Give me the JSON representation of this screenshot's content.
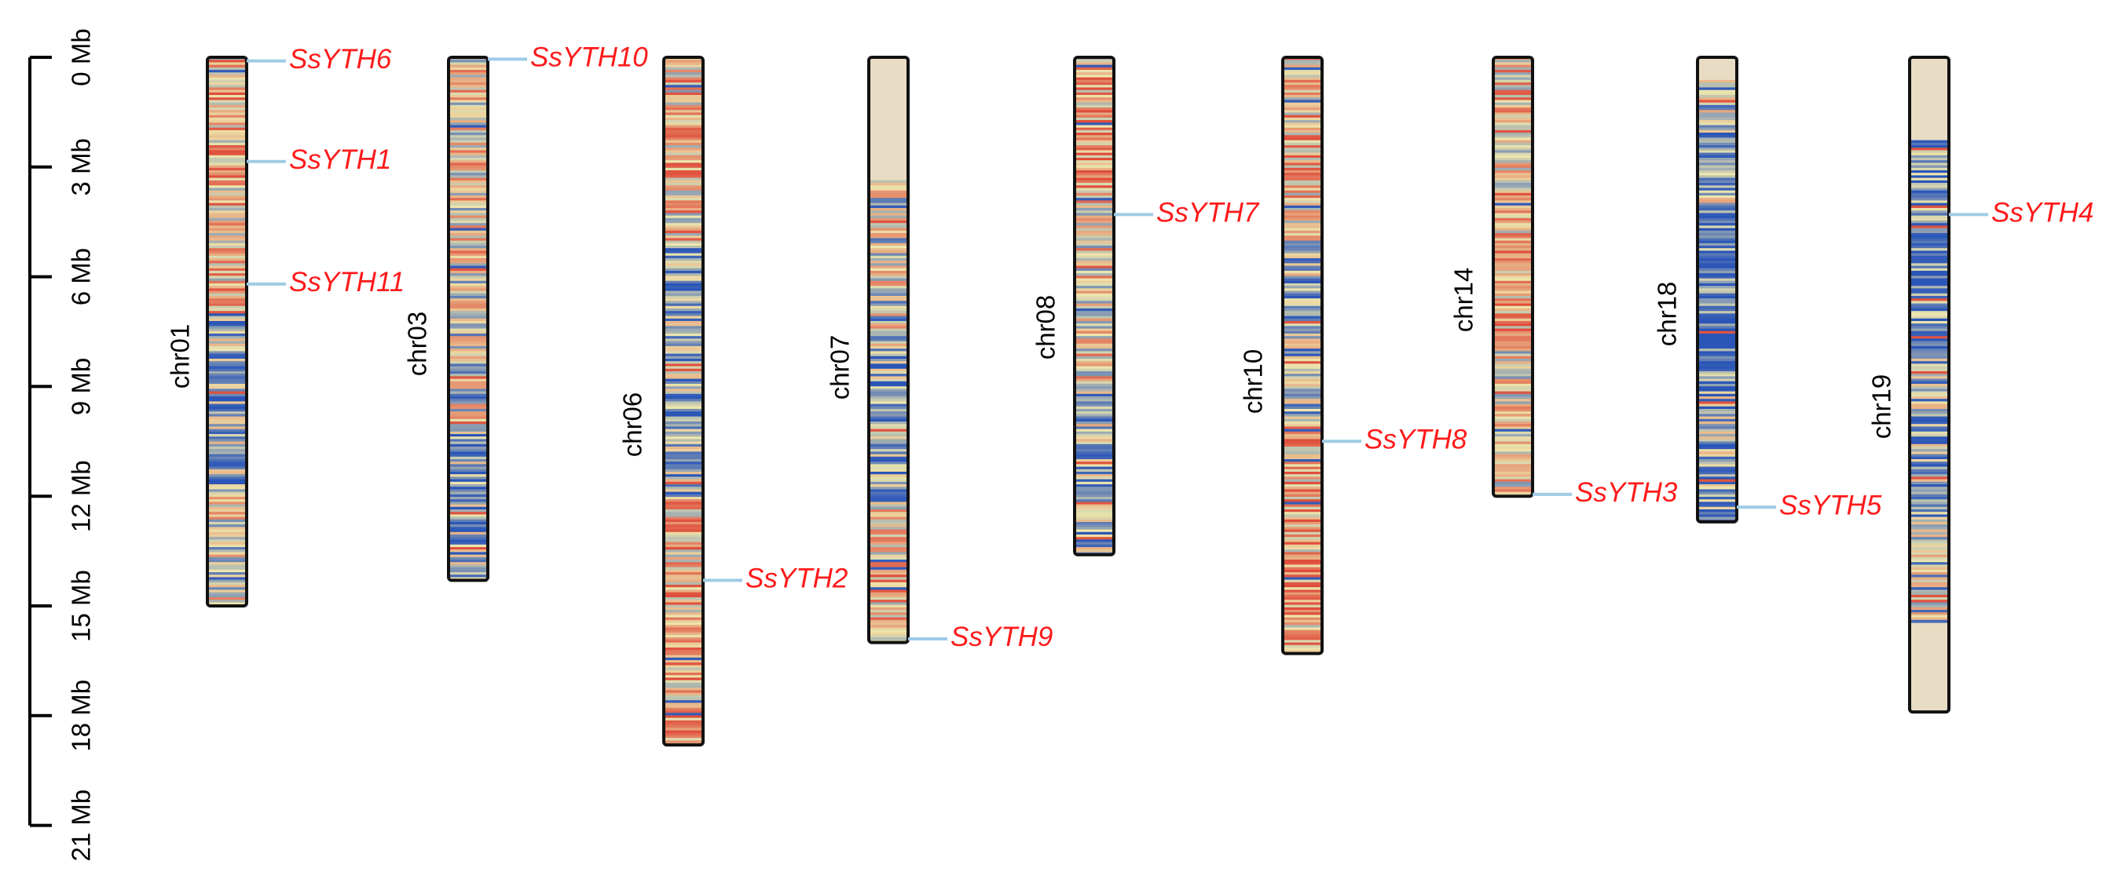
{
  "colors": {
    "chromosome_outline": "#111111",
    "no_density": "#e8dcc4",
    "density_low": "#2b56b8",
    "density_mid": "#ede6ad",
    "density_high": "#df4e3c",
    "gene_connector": "#9fcbe6",
    "gene_label": "#ff1a1a",
    "text": "#000000"
  },
  "scale_bar": {
    "unit": "Mb",
    "ticks": [
      {
        "value": 0,
        "label": "0 Mb"
      },
      {
        "value": 3,
        "label": "3 Mb"
      },
      {
        "value": 6,
        "label": "6 Mb"
      },
      {
        "value": 9,
        "label": "9 Mb"
      },
      {
        "value": 12,
        "label": "12 Mb"
      },
      {
        "value": 15,
        "label": "15 Mb"
      },
      {
        "value": 18,
        "label": "18 Mb"
      },
      {
        "value": 21,
        "label": "21 Mb"
      }
    ]
  },
  "chromosomes": [
    {
      "name": "chr01",
      "length_mb": 15.0,
      "genes": [
        {
          "name": "SsYTH6",
          "position_mb": 0.1
        },
        {
          "name": "SsYTH1",
          "position_mb": 2.85
        },
        {
          "name": "SsYTH11",
          "position_mb": 6.2
        }
      ]
    },
    {
      "name": "chr03",
      "length_mb": 14.3,
      "genes": [
        {
          "name": "SsYTH10",
          "position_mb": 0.05
        }
      ]
    },
    {
      "name": "chr06",
      "length_mb": 18.8,
      "genes": [
        {
          "name": "SsYTH2",
          "position_mb": 14.3
        }
      ]
    },
    {
      "name": "chr07",
      "length_mb": 16.0,
      "genes": [
        {
          "name": "SsYTH9",
          "position_mb": 15.9
        }
      ]
    },
    {
      "name": "chr08",
      "length_mb": 13.6,
      "genes": [
        {
          "name": "SsYTH7",
          "position_mb": 4.3
        }
      ]
    },
    {
      "name": "chr10",
      "length_mb": 16.3,
      "genes": [
        {
          "name": "SsYTH8",
          "position_mb": 10.5
        }
      ]
    },
    {
      "name": "chr14",
      "length_mb": 12.0,
      "genes": [
        {
          "name": "SsYTH3",
          "position_mb": 11.95
        }
      ]
    },
    {
      "name": "chr18",
      "length_mb": 12.7,
      "genes": [
        {
          "name": "SsYTH5",
          "position_mb": 12.3
        }
      ]
    },
    {
      "name": "chr19",
      "length_mb": 17.9,
      "genes": [
        {
          "name": "SsYTH4",
          "position_mb": 4.3
        }
      ]
    }
  ]
}
